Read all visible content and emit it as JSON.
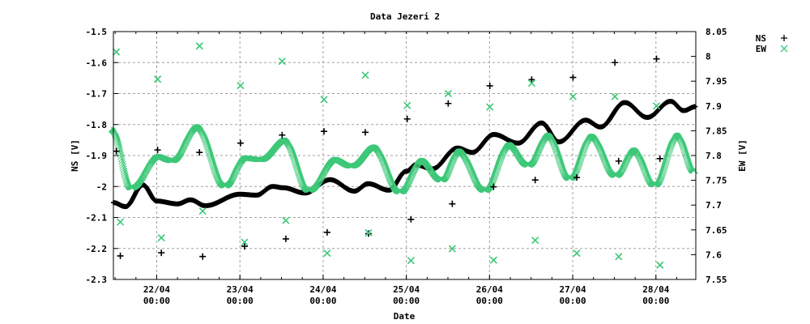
{
  "chart_data": {
    "type": "scatter",
    "title": "Data Jezeri 2",
    "xlabel": "Date",
    "ylabel": "NS [V]",
    "y2label": "EW [V]",
    "xlim": [
      "21/04 11:30",
      "28/04 11:30"
    ],
    "ylim": [
      -2.3,
      -1.5
    ],
    "y2lim": [
      7.55,
      8.05
    ],
    "grid": true,
    "legend_position": "outside-top-right",
    "x_ticks": [
      {
        "date": "22/04",
        "time": "00:00"
      },
      {
        "date": "23/04",
        "time": "00:00"
      },
      {
        "date": "24/04",
        "time": "00:00"
      },
      {
        "date": "25/04",
        "time": "00:00"
      },
      {
        "date": "26/04",
        "time": "00:00"
      },
      {
        "date": "27/04",
        "time": "00:00"
      },
      {
        "date": "28/04",
        "time": "00:00"
      }
    ],
    "y_ticks": [
      "-1.5",
      "-1.6",
      "-1.7",
      "-1.8",
      "-1.9",
      "-2",
      "-2.1",
      "-2.2",
      "-2.3"
    ],
    "y2_ticks": [
      "8.05",
      "8",
      "7.95",
      "7.9",
      "7.85",
      "7.8",
      "7.75",
      "7.7",
      "7.65",
      "7.6",
      "7.55"
    ],
    "series": [
      {
        "name": "NS",
        "axis": "left",
        "marker": "plus",
        "color": "#000000",
        "trace": [
          [
            "21/04 11:30",
            -2.052
          ],
          [
            "21/04 15:00",
            -2.065
          ],
          [
            "21/04 20:00",
            -1.995
          ],
          [
            "22/04 00:00",
            -2.047
          ],
          [
            "22/04 06:00",
            -2.056
          ],
          [
            "22/04 09:45",
            -2.043
          ],
          [
            "22/04 14:00",
            -2.062
          ],
          [
            "23/04 00:00",
            -2.025
          ],
          [
            "23/04 04:45",
            -2.028
          ],
          [
            "23/04 09:30",
            -2.0
          ],
          [
            "23/04 12:30",
            -2.004
          ],
          [
            "23/04 18:45",
            -2.021
          ],
          [
            "24/04 02:00",
            -1.978
          ],
          [
            "24/04 09:00",
            -2.015
          ],
          [
            "24/04 13:00",
            -1.991
          ],
          [
            "24/04 19:00",
            -2.012
          ],
          [
            "25/04 00:00",
            -1.951
          ],
          [
            "25/04 02:45",
            -1.93
          ],
          [
            "25/04 07:30",
            -1.943
          ],
          [
            "25/04 14:45",
            -1.876
          ],
          [
            "25/04 19:00",
            -1.89
          ],
          [
            "26/04 01:15",
            -1.832
          ],
          [
            "26/04 08:15",
            -1.86
          ],
          [
            "26/04 15:00",
            -1.795
          ],
          [
            "26/04 20:00",
            -1.856
          ],
          [
            "27/04 03:45",
            -1.786
          ],
          [
            "27/04 08:00",
            -1.808
          ],
          [
            "27/04 15:00",
            -1.729
          ],
          [
            "27/04 21:30",
            -1.777
          ],
          [
            "28/04 04:15",
            -1.725
          ],
          [
            "28/04 08:00",
            -1.755
          ],
          [
            "28/04 11:30",
            -1.742
          ]
        ],
        "points": [
          [
            "21/04 12:20",
            -1.886
          ],
          [
            "21/04 13:30",
            -2.224
          ],
          [
            "22/04 00:15",
            -1.882
          ],
          [
            "22/04 01:20",
            -2.214
          ],
          [
            "22/04 12:20",
            -1.89
          ],
          [
            "22/04 13:15",
            -2.226
          ],
          [
            "23/04 00:10",
            -1.86
          ],
          [
            "23/04 01:20",
            -2.193
          ],
          [
            "23/04 12:10",
            -1.834
          ],
          [
            "23/04 13:15",
            -2.169
          ],
          [
            "24/04 00:15",
            -1.822
          ],
          [
            "24/04 01:10",
            -2.148
          ],
          [
            "24/04 12:10",
            -1.825
          ],
          [
            "24/04 13:05",
            -2.152
          ],
          [
            "25/04 00:15",
            -1.782
          ],
          [
            "25/04 01:20",
            -2.106
          ],
          [
            "25/04 12:05",
            -1.732
          ],
          [
            "25/04 13:15",
            -2.056
          ],
          [
            "26/04 00:05",
            -1.675
          ],
          [
            "26/04 01:10",
            -2.001
          ],
          [
            "26/04 12:10",
            -1.655
          ],
          [
            "26/04 13:10",
            -1.979
          ],
          [
            "27/04 00:05",
            -1.648
          ],
          [
            "27/04 01:10",
            -1.971
          ],
          [
            "27/04 12:10",
            -1.6
          ],
          [
            "27/04 13:15",
            -1.918
          ],
          [
            "28/04 00:10",
            -1.588
          ],
          [
            "28/04 01:10",
            -1.91
          ]
        ]
      },
      {
        "name": "EW",
        "axis": "right",
        "marker": "cross",
        "color": "#3cc878",
        "trace": [
          [
            "21/04 11:30",
            7.852
          ],
          [
            "21/04 17:00",
            7.735
          ],
          [
            "22/04 00:45",
            7.798
          ],
          [
            "22/04 04:45",
            7.79
          ],
          [
            "22/04 12:00",
            7.858
          ],
          [
            "22/04 20:00",
            7.739
          ],
          [
            "23/04 01:45",
            7.795
          ],
          [
            "23/04 06:15",
            7.792
          ],
          [
            "23/04 13:15",
            7.831
          ],
          [
            "23/04 20:15",
            7.73
          ],
          [
            "24/04 03:45",
            7.792
          ],
          [
            "24/04 08:30",
            7.779
          ],
          [
            "24/04 15:00",
            7.817
          ],
          [
            "24/04 22:30",
            7.727
          ],
          [
            "25/04 04:45",
            7.79
          ],
          [
            "25/04 10:30",
            7.751
          ],
          [
            "25/04 15:30",
            7.809
          ],
          [
            "25/04 23:00",
            7.73
          ],
          [
            "26/04 06:00",
            7.822
          ],
          [
            "26/04 11:30",
            7.781
          ],
          [
            "26/04 17:15",
            7.841
          ],
          [
            "26/04 23:30",
            7.754
          ],
          [
            "27/04 05:45",
            7.839
          ],
          [
            "27/04 12:45",
            7.76
          ],
          [
            "27/04 18:00",
            7.811
          ],
          [
            "28/04 00:00",
            7.741
          ],
          [
            "28/04 06:30",
            7.841
          ],
          [
            "28/04 11:30",
            7.768
          ]
        ],
        "points": [
          [
            "21/04 12:20",
            8.009
          ],
          [
            "21/04 13:30",
            7.666
          ],
          [
            "22/04 00:15",
            7.954
          ],
          [
            "22/04 01:20",
            7.634
          ],
          [
            "22/04 12:20",
            8.021
          ],
          [
            "22/04 13:15",
            7.688
          ],
          [
            "23/04 00:10",
            7.941
          ],
          [
            "23/04 01:20",
            7.625
          ],
          [
            "23/04 12:10",
            7.99
          ],
          [
            "23/04 13:15",
            7.669
          ],
          [
            "24/04 00:15",
            7.913
          ],
          [
            "24/04 01:10",
            7.603
          ],
          [
            "24/04 12:10",
            7.962
          ],
          [
            "24/04 13:05",
            7.644
          ],
          [
            "25/04 00:15",
            7.901
          ],
          [
            "25/04 01:20",
            7.588
          ],
          [
            "25/04 12:05",
            7.925
          ],
          [
            "25/04 13:15",
            7.612
          ],
          [
            "26/04 00:05",
            7.898
          ],
          [
            "26/04 01:10",
            7.589
          ],
          [
            "26/04 12:10",
            7.946
          ],
          [
            "26/04 13:10",
            7.629
          ],
          [
            "27/04 00:05",
            7.919
          ],
          [
            "27/04 01:10",
            7.603
          ],
          [
            "27/04 12:10",
            7.919
          ],
          [
            "27/04 13:15",
            7.596
          ],
          [
            "28/04 00:10",
            7.9
          ],
          [
            "28/04 01:10",
            7.579
          ]
        ]
      }
    ]
  }
}
